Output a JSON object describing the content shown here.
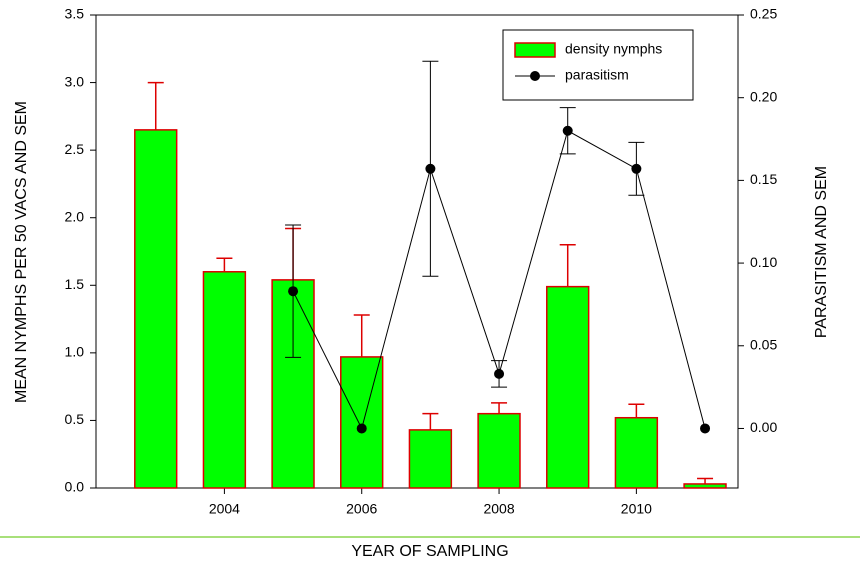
{
  "chart_data": {
    "type": "bar",
    "xlabel": "YEAR OF SAMPLING",
    "ylabel": "MEAN NYMPHS PER 50 VACS AND SEM",
    "y2label": "PARASITISM AND SEM",
    "x": [
      2003,
      2004,
      2005,
      2006,
      2007,
      2008,
      2009,
      2010,
      2011
    ],
    "xlim": [
      2002.13,
      2011.48
    ],
    "xticks": [
      2004,
      2006,
      2008,
      2010
    ],
    "ylim": [
      0,
      3.5
    ],
    "yticks": [
      {
        "value": 0,
        "label": "0.0"
      },
      0.5,
      {
        "value": 1,
        "label": "1.0"
      },
      1.5,
      {
        "value": 2,
        "label": "2.0"
      },
      2.5,
      {
        "value": 3,
        "label": "3.0"
      },
      3.5
    ],
    "y2lim": [
      -0.036,
      0.25
    ],
    "y2ticks": [
      {
        "value": 0,
        "label": "0.00"
      },
      0.05,
      {
        "value": 0.1,
        "label": "0.10"
      },
      0.15,
      {
        "value": 0.2,
        "label": "0.20"
      },
      0.25
    ],
    "legend": "upper right",
    "series": [
      {
        "name": "density nymphs",
        "type": "bar",
        "color": "#00ff00",
        "edgecolor": "#dd0000",
        "values": [
          2.65,
          1.6,
          1.54,
          0.97,
          0.43,
          0.55,
          1.49,
          0.52,
          0.03
        ],
        "errors": [
          0.35,
          0.1,
          0.38,
          0.31,
          0.12,
          0.08,
          0.31,
          0.1,
          0.04
        ]
      },
      {
        "name": "parasitism",
        "type": "line",
        "axis": "y2",
        "color": "#000000",
        "values": [
          null,
          null,
          0.083,
          0,
          0.157,
          0.033,
          0.18,
          0.157,
          0
        ],
        "errors": [
          null,
          null,
          0.04,
          null,
          0.065,
          0.008,
          0.014,
          0.016,
          null
        ]
      }
    ]
  }
}
